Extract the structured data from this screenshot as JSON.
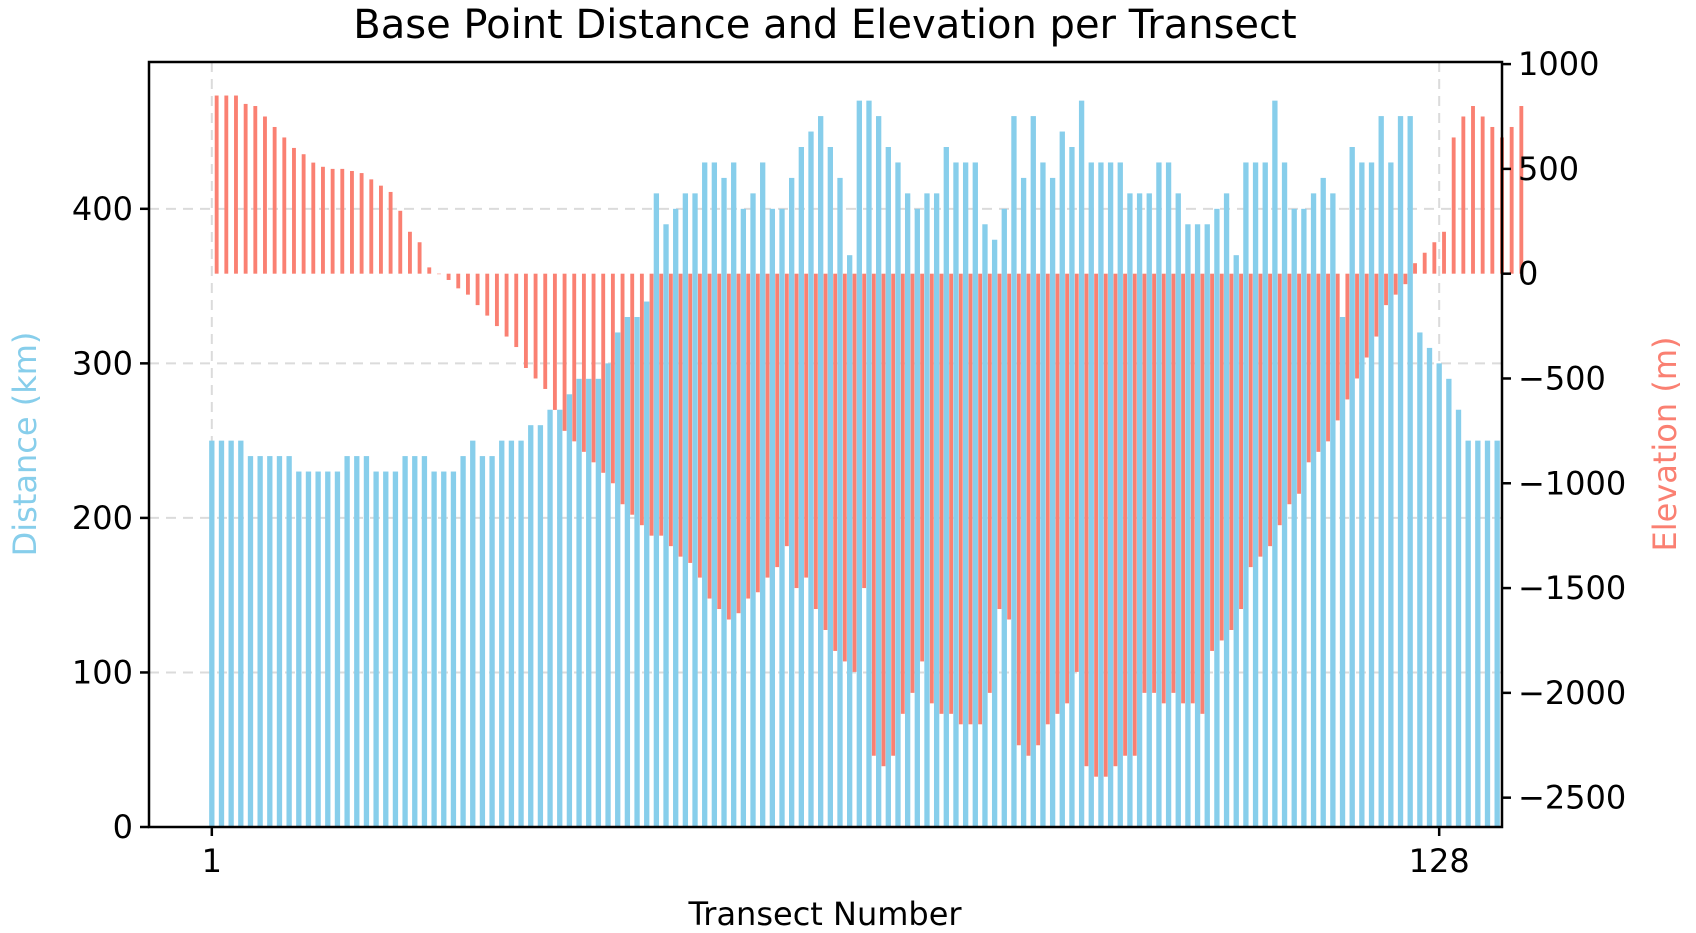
{
  "chart_data": {
    "type": "bar",
    "title": "Base Point Distance and Elevation per Transect",
    "xlabel": "Transect Number",
    "x_ticks": [
      1,
      128
    ],
    "x_tick_labels": [
      "1",
      "128"
    ],
    "xlim": [
      -5.5,
      134.5
    ],
    "grid": true,
    "series": [
      {
        "name": "Distance (km)",
        "axis": "left",
        "color": "#87CEEB",
        "ylabel": "Distance (km)",
        "ylim": [
          0,
          495
        ],
        "yticks": [
          0,
          100,
          200,
          300,
          400
        ],
        "ytick_labels": [
          "0",
          "100",
          "200",
          "300",
          "400"
        ],
        "values": [
          250,
          250,
          250,
          250,
          240,
          240,
          240,
          240,
          240,
          230,
          230,
          230,
          230,
          230,
          240,
          240,
          240,
          230,
          230,
          230,
          240,
          240,
          240,
          230,
          230,
          230,
          240,
          250,
          240,
          240,
          250,
          250,
          250,
          260,
          260,
          270,
          270,
          280,
          290,
          290,
          290,
          300,
          320,
          330,
          330,
          340,
          410,
          390,
          400,
          410,
          410,
          430,
          430,
          420,
          430,
          400,
          410,
          430,
          400,
          400,
          420,
          440,
          450,
          460,
          440,
          420,
          370,
          470,
          470,
          460,
          440,
          430,
          410,
          400,
          410,
          410,
          440,
          430,
          430,
          430,
          390,
          380,
          400,
          460,
          420,
          460,
          430,
          420,
          450,
          440,
          470,
          430,
          430,
          430,
          430,
          410,
          410,
          410,
          430,
          430,
          410,
          390,
          390,
          390,
          400,
          410,
          370,
          430,
          430,
          430,
          470,
          430,
          400,
          400,
          410,
          420,
          410,
          330,
          440,
          430,
          430,
          460,
          430,
          460,
          460,
          320,
          310,
          300,
          290,
          270,
          250,
          250,
          250,
          250
        ]
      },
      {
        "name": "Elevation (m)",
        "axis": "right",
        "color": "#FA8072",
        "ylabel": "Elevation (m)",
        "ylim": [
          -2640,
          1010
        ],
        "yticks": [
          -2500,
          -2000,
          -1500,
          -1000,
          -500,
          0,
          500,
          1000
        ],
        "ytick_labels": [
          "−2500",
          "−2000",
          "−1500",
          "−1000",
          "−500",
          "0",
          "500",
          "1000"
        ],
        "values": [
          850,
          850,
          850,
          810,
          800,
          750,
          700,
          650,
          600,
          570,
          530,
          510,
          500,
          500,
          490,
          480,
          450,
          420,
          390,
          300,
          200,
          150,
          30,
          0,
          -30,
          -70,
          -100,
          -150,
          -200,
          -250,
          -300,
          -350,
          -450,
          -500,
          -550,
          -650,
          -750,
          -800,
          -850,
          -900,
          -950,
          -1000,
          -1100,
          -1150,
          -1200,
          -1250,
          -1250,
          -1300,
          -1350,
          -1380,
          -1450,
          -1550,
          -1600,
          -1650,
          -1620,
          -1550,
          -1520,
          -1450,
          -1400,
          -1300,
          -1500,
          -1450,
          -1600,
          -1700,
          -1800,
          -1850,
          -1900,
          -1500,
          -2300,
          -2350,
          -2300,
          -2100,
          -2000,
          -1850,
          -2050,
          -2100,
          -2100,
          -2150,
          -2150,
          -2150,
          -2000,
          -1600,
          -1650,
          -2250,
          -2300,
          -2250,
          -2150,
          -2100,
          -2050,
          -1900,
          -2350,
          -2400,
          -2400,
          -2350,
          -2300,
          -2300,
          -2000,
          -2000,
          -2050,
          -2000,
          -2050,
          -2050,
          -2100,
          -1800,
          -1750,
          -1700,
          -1600,
          -1400,
          -1350,
          -1300,
          -1200,
          -1100,
          -1050,
          -900,
          -850,
          -800,
          -700,
          -600,
          -500,
          -400,
          -300,
          -150,
          -100,
          -50,
          50,
          100,
          150,
          200,
          650,
          750,
          800,
          750,
          700,
          650,
          700,
          800
        ]
      }
    ]
  }
}
